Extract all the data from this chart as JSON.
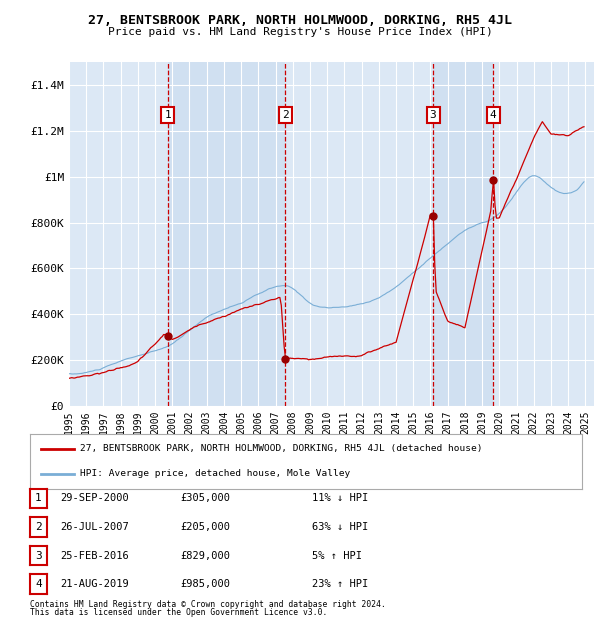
{
  "title": "27, BENTSBROOK PARK, NORTH HOLMWOOD, DORKING, RH5 4JL",
  "subtitle": "Price paid vs. HM Land Registry's House Price Index (HPI)",
  "ylim": [
    0,
    1500000
  ],
  "yticks": [
    0,
    200000,
    400000,
    600000,
    800000,
    1000000,
    1200000,
    1400000
  ],
  "ytick_labels": [
    "£0",
    "£200K",
    "£400K",
    "£600K",
    "£800K",
    "£1M",
    "£1.2M",
    "£1.4M"
  ],
  "xlim_start": 1995.0,
  "xlim_end": 2025.5,
  "background_color": "#ffffff",
  "plot_bg_color": "#dce8f5",
  "grid_color": "#ffffff",
  "red_line_color": "#cc0000",
  "blue_line_color": "#7aaed6",
  "sale_marker_color": "#990000",
  "sale_vline_color": "#cc0000",
  "transaction_box_color": "#cc0000",
  "shade_color": "#c8dbef",
  "transactions": [
    {
      "num": 1,
      "date": "29-SEP-2000",
      "price": 305000,
      "pct": "11% ↓ HPI",
      "year": 2000.75
    },
    {
      "num": 2,
      "date": "26-JUL-2007",
      "price": 205000,
      "pct": "63% ↓ HPI",
      "year": 2007.55
    },
    {
      "num": 3,
      "date": "25-FEB-2016",
      "price": 829000,
      "pct": "5% ↑ HPI",
      "year": 2016.15
    },
    {
      "num": 4,
      "date": "21-AUG-2019",
      "price": 985000,
      "pct": "23% ↑ HPI",
      "year": 2019.65
    }
  ],
  "legend_red_label": "27, BENTSBROOK PARK, NORTH HOLMWOOD, DORKING, RH5 4JL (detached house)",
  "legend_blue_label": "HPI: Average price, detached house, Mole Valley",
  "footer1": "Contains HM Land Registry data © Crown copyright and database right 2024.",
  "footer2": "This data is licensed under the Open Government Licence v3.0.",
  "xtick_years": [
    1995,
    1996,
    1997,
    1998,
    1999,
    2000,
    2001,
    2002,
    2003,
    2004,
    2005,
    2006,
    2007,
    2008,
    2009,
    2010,
    2011,
    2012,
    2013,
    2014,
    2015,
    2016,
    2017,
    2018,
    2019,
    2020,
    2021,
    2022,
    2023,
    2024,
    2025
  ]
}
